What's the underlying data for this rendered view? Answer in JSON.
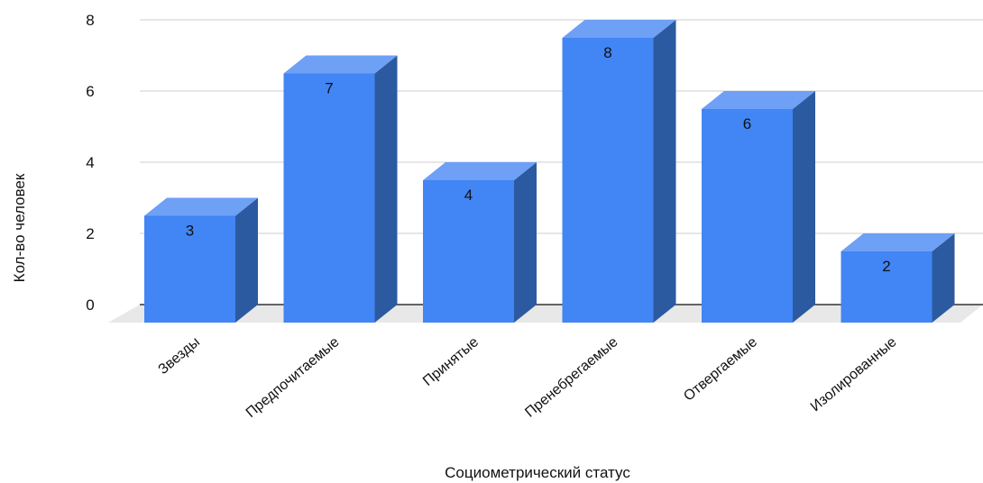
{
  "chart_data": {
    "type": "bar",
    "categories": [
      "Звезды",
      "Предпочитаемые",
      "Принятые",
      "Пренебрегаемые",
      "Отвергаемые",
      "Изолированные"
    ],
    "values": [
      3,
      7,
      4,
      8,
      6,
      2
    ],
    "y_ticks": [
      "0",
      "2",
      "4",
      "6",
      "8"
    ],
    "ylim": [
      0,
      8
    ],
    "xlabel": "Социометрический статус",
    "ylabel": "Кол-во человек",
    "grid": true,
    "style": "3d",
    "colors": {
      "front": "#4285f4",
      "top": "#6ea0f6",
      "side": "#2c5aa0",
      "floor": "#e8e8e8",
      "grid": "#cccccc",
      "zero_line": "#333333"
    }
  }
}
